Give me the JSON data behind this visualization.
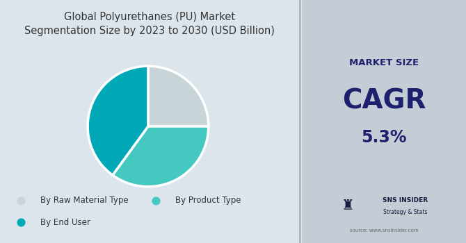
{
  "title": "Global Polyurethanes (PU) Market\nSegmentation Size by 2023 to 2030 (USD Billion)",
  "title_fontsize": 10.5,
  "pie_values": [
    25,
    35,
    40
  ],
  "pie_colors": [
    "#c8d4d8",
    "#45c8c0",
    "#00a8b8"
  ],
  "pie_labels": [
    "By Raw Material Type",
    "By Product Type",
    "By End User"
  ],
  "legend_colors": [
    "#c8d4d8",
    "#45c8c0",
    "#00a8b8"
  ],
  "left_bg": "#dde5ec",
  "right_bg": "#c4cdd6",
  "market_size_label": "MARKET SIZE",
  "cagr_label": "CAGR",
  "cagr_value": "5.3%",
  "text_color_dark": "#1e206e",
  "source_text": "source: www.snsinsider.com",
  "sns_label": "SNS INSIDER",
  "sns_sublabel": "Strategy & Stats",
  "start_angle": 90,
  "counterclock": false,
  "fig_width": 6.7,
  "fig_height": 3.5,
  "dpi": 100
}
